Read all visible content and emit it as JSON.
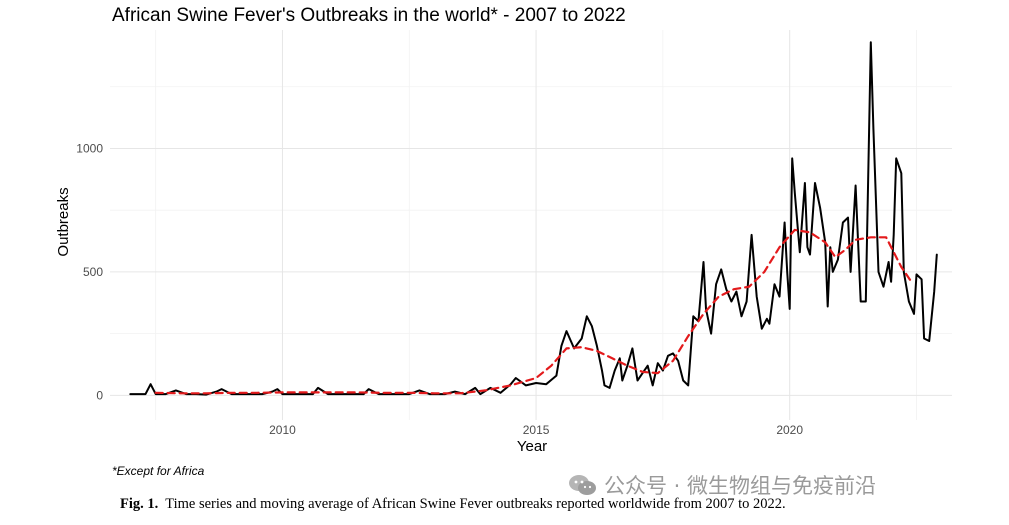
{
  "chart_data": {
    "type": "line",
    "title": "African Swine Fever's Outbreaks in the world* - 2007 to 2022",
    "xlabel": "Year",
    "ylabel": "Outbreaks",
    "xlim": [
      2006.6,
      2023.2
    ],
    "ylim": [
      -100,
      1480
    ],
    "x_ticks": [
      2010,
      2015,
      2020
    ],
    "y_ticks": [
      0,
      500,
      1000
    ],
    "grid": true,
    "footnote": "*Except for Africa",
    "series": [
      {
        "style": "solid",
        "color": "#000000",
        "points": [
          [
            2007.0,
            5
          ],
          [
            2007.3,
            5
          ],
          [
            2007.4,
            45
          ],
          [
            2007.5,
            5
          ],
          [
            2007.7,
            5
          ],
          [
            2007.9,
            20
          ],
          [
            2008.1,
            5
          ],
          [
            2008.3,
            5
          ],
          [
            2008.5,
            3
          ],
          [
            2008.7,
            15
          ],
          [
            2008.8,
            25
          ],
          [
            2009.0,
            5
          ],
          [
            2009.3,
            5
          ],
          [
            2009.6,
            5
          ],
          [
            2009.8,
            15
          ],
          [
            2009.9,
            25
          ],
          [
            2010.0,
            5
          ],
          [
            2010.3,
            5
          ],
          [
            2010.6,
            5
          ],
          [
            2010.7,
            30
          ],
          [
            2010.9,
            5
          ],
          [
            2011.3,
            5
          ],
          [
            2011.6,
            5
          ],
          [
            2011.7,
            25
          ],
          [
            2011.9,
            5
          ],
          [
            2012.2,
            5
          ],
          [
            2012.5,
            5
          ],
          [
            2012.7,
            20
          ],
          [
            2012.9,
            5
          ],
          [
            2013.2,
            5
          ],
          [
            2013.4,
            15
          ],
          [
            2013.6,
            5
          ],
          [
            2013.8,
            30
          ],
          [
            2013.9,
            5
          ],
          [
            2014.1,
            30
          ],
          [
            2014.3,
            10
          ],
          [
            2014.5,
            45
          ],
          [
            2014.6,
            70
          ],
          [
            2014.8,
            40
          ],
          [
            2015.0,
            50
          ],
          [
            2015.2,
            45
          ],
          [
            2015.4,
            80
          ],
          [
            2015.5,
            200
          ],
          [
            2015.6,
            260
          ],
          [
            2015.75,
            190
          ],
          [
            2015.9,
            230
          ],
          [
            2016.0,
            320
          ],
          [
            2016.1,
            280
          ],
          [
            2016.2,
            200
          ],
          [
            2016.3,
            100
          ],
          [
            2016.35,
            40
          ],
          [
            2016.45,
            30
          ],
          [
            2016.55,
            100
          ],
          [
            2016.65,
            150
          ],
          [
            2016.7,
            60
          ],
          [
            2016.8,
            120
          ],
          [
            2016.9,
            190
          ],
          [
            2017.0,
            60
          ],
          [
            2017.1,
            90
          ],
          [
            2017.2,
            120
          ],
          [
            2017.3,
            40
          ],
          [
            2017.4,
            130
          ],
          [
            2017.5,
            100
          ],
          [
            2017.6,
            160
          ],
          [
            2017.7,
            170
          ],
          [
            2017.8,
            140
          ],
          [
            2017.9,
            60
          ],
          [
            2018.0,
            40
          ],
          [
            2018.1,
            320
          ],
          [
            2018.2,
            300
          ],
          [
            2018.3,
            540
          ],
          [
            2018.35,
            350
          ],
          [
            2018.45,
            250
          ],
          [
            2018.55,
            450
          ],
          [
            2018.65,
            510
          ],
          [
            2018.75,
            430
          ],
          [
            2018.85,
            380
          ],
          [
            2018.95,
            420
          ],
          [
            2019.05,
            320
          ],
          [
            2019.15,
            380
          ],
          [
            2019.25,
            650
          ],
          [
            2019.35,
            400
          ],
          [
            2019.45,
            270
          ],
          [
            2019.55,
            310
          ],
          [
            2019.6,
            290
          ],
          [
            2019.7,
            450
          ],
          [
            2019.8,
            400
          ],
          [
            2019.9,
            700
          ],
          [
            2019.95,
            500
          ],
          [
            2020.0,
            350
          ],
          [
            2020.05,
            960
          ],
          [
            2020.1,
            820
          ],
          [
            2020.2,
            580
          ],
          [
            2020.3,
            860
          ],
          [
            2020.35,
            600
          ],
          [
            2020.4,
            570
          ],
          [
            2020.5,
            860
          ],
          [
            2020.6,
            760
          ],
          [
            2020.7,
            620
          ],
          [
            2020.75,
            360
          ],
          [
            2020.8,
            600
          ],
          [
            2020.85,
            500
          ],
          [
            2020.95,
            550
          ],
          [
            2021.05,
            700
          ],
          [
            2021.15,
            720
          ],
          [
            2021.2,
            500
          ],
          [
            2021.3,
            850
          ],
          [
            2021.4,
            380
          ],
          [
            2021.5,
            380
          ],
          [
            2021.6,
            1430
          ],
          [
            2021.65,
            1080
          ],
          [
            2021.75,
            500
          ],
          [
            2021.85,
            440
          ],
          [
            2021.95,
            540
          ],
          [
            2022.0,
            460
          ],
          [
            2022.05,
            650
          ],
          [
            2022.1,
            960
          ],
          [
            2022.2,
            900
          ],
          [
            2022.25,
            500
          ],
          [
            2022.35,
            380
          ],
          [
            2022.45,
            330
          ],
          [
            2022.5,
            490
          ],
          [
            2022.6,
            470
          ],
          [
            2022.65,
            230
          ],
          [
            2022.75,
            220
          ],
          [
            2022.85,
            420
          ],
          [
            2022.9,
            570
          ]
        ]
      },
      {
        "style": "dashed",
        "color": "#e31a1c",
        "points": [
          [
            2007.5,
            10
          ],
          [
            2008.0,
            8
          ],
          [
            2008.5,
            8
          ],
          [
            2009.0,
            10
          ],
          [
            2009.5,
            10
          ],
          [
            2010.0,
            12
          ],
          [
            2010.5,
            12
          ],
          [
            2011.0,
            12
          ],
          [
            2011.5,
            12
          ],
          [
            2012.0,
            10
          ],
          [
            2012.5,
            10
          ],
          [
            2013.0,
            8
          ],
          [
            2013.5,
            8
          ],
          [
            2014.0,
            20
          ],
          [
            2014.5,
            40
          ],
          [
            2015.0,
            70
          ],
          [
            2015.3,
            120
          ],
          [
            2015.6,
            190
          ],
          [
            2015.9,
            195
          ],
          [
            2016.2,
            180
          ],
          [
            2016.5,
            150
          ],
          [
            2016.8,
            120
          ],
          [
            2017.1,
            95
          ],
          [
            2017.4,
            90
          ],
          [
            2017.7,
            140
          ],
          [
            2018.0,
            240
          ],
          [
            2018.3,
            330
          ],
          [
            2018.6,
            400
          ],
          [
            2018.9,
            430
          ],
          [
            2019.2,
            440
          ],
          [
            2019.5,
            500
          ],
          [
            2019.8,
            600
          ],
          [
            2020.1,
            670
          ],
          [
            2020.4,
            660
          ],
          [
            2020.7,
            620
          ],
          [
            2020.9,
            560
          ],
          [
            2021.1,
            590
          ],
          [
            2021.3,
            630
          ],
          [
            2021.6,
            640
          ],
          [
            2021.9,
            640
          ],
          [
            2022.2,
            520
          ],
          [
            2022.4,
            460
          ]
        ]
      }
    ]
  },
  "caption": {
    "label": "Fig. 1.",
    "text": "Time series and moving average of African Swine Fever outbreaks reported worldwide from 2007 to 2022."
  },
  "watermark": {
    "text": "公众号 · 微生物组与免疫前沿"
  }
}
